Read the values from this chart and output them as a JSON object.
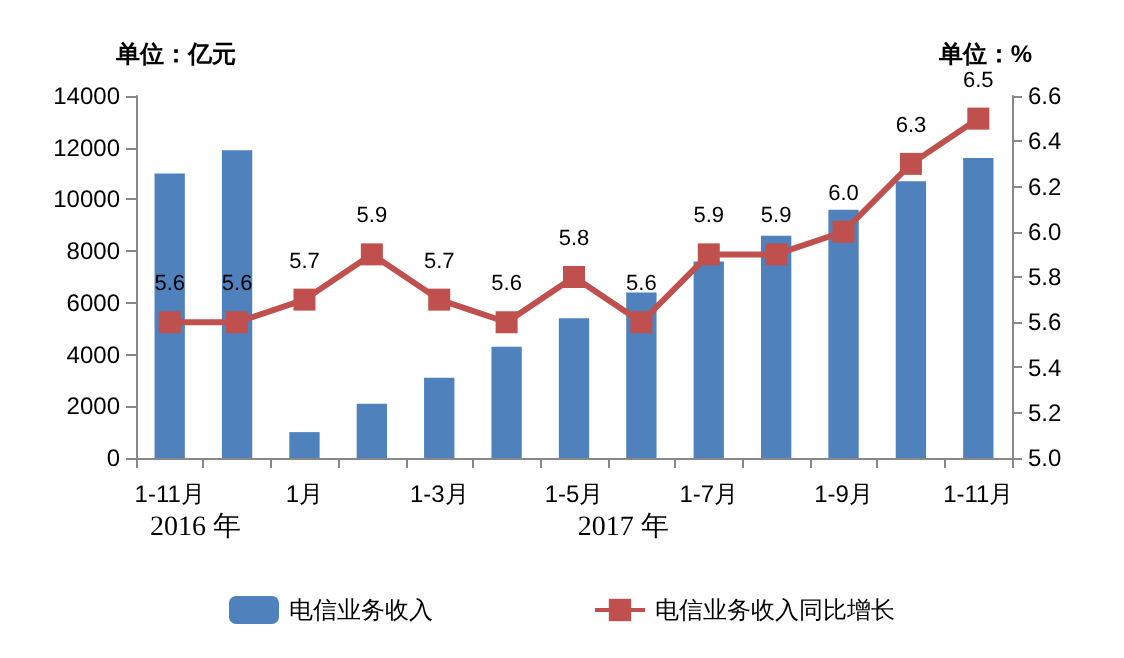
{
  "chart_data": {
    "type": "bar",
    "categories": [
      "1-11月",
      null,
      "1月",
      null,
      "1-3月",
      null,
      "1-5月",
      null,
      "1-7月",
      null,
      "1-9月",
      null,
      "1-11月"
    ],
    "series": [
      {
        "name": "电信业务收入",
        "color": "#4f81bd",
        "values": [
          11000,
          11900,
          1000,
          2100,
          3100,
          4300,
          5400,
          6400,
          7600,
          8600,
          9600,
          10700,
          11600
        ]
      },
      {
        "name": "电信业务收入同比增长",
        "type": "line",
        "axis": "y2",
        "color": "#c0504d",
        "marker": "square",
        "values": [
          5.6,
          5.6,
          5.7,
          5.9,
          5.7,
          5.6,
          5.8,
          5.6,
          5.9,
          5.9,
          6.0,
          6.3,
          6.5
        ],
        "value_labels": [
          "5.6",
          "5.6",
          "5.7",
          "5.9",
          "5.7",
          "5.6",
          "5.8",
          "5.6",
          "5.9",
          "5.9",
          "6.0",
          "6.3",
          "6.5"
        ]
      }
    ],
    "ylabel": "单位：亿元",
    "y2label": "单位：%",
    "ylim": [
      0,
      14000
    ],
    "yticks": [
      0,
      2000,
      4000,
      6000,
      8000,
      10000,
      12000,
      14000
    ],
    "y2lim": [
      5.0,
      6.6
    ],
    "y2ticks": [
      {
        "value": 5.0,
        "label": "5.0"
      },
      {
        "value": 5.2,
        "label": "5.2"
      },
      {
        "value": 5.4,
        "label": "5.4"
      },
      {
        "value": 5.6,
        "label": "5.6"
      },
      {
        "value": 5.8,
        "label": "5.8"
      },
      {
        "value": 6.0,
        "label": "6.0"
      },
      {
        "value": 6.2,
        "label": "6.2"
      },
      {
        "value": 6.4,
        "label": "6.4"
      },
      {
        "value": 6.6,
        "label": "6.6"
      }
    ],
    "annotations": [
      "2016 年",
      "2017 年"
    ],
    "legend": "bottom",
    "grid": false
  }
}
